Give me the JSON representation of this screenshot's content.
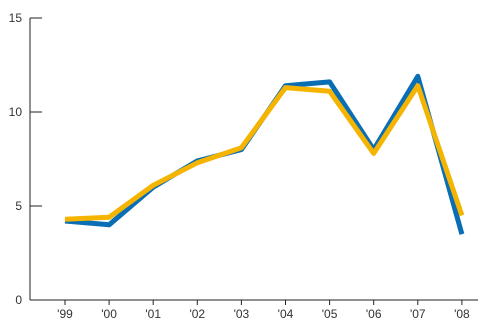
{
  "chart_data": {
    "type": "line",
    "title": "",
    "xlabel": "",
    "ylabel": "",
    "categories": [
      "'99",
      "'00",
      "'01",
      "'02",
      "'03",
      "'04",
      "'05",
      "'06",
      "'07",
      "'08"
    ],
    "ylim": [
      0,
      15
    ],
    "yticks": [
      0,
      5,
      10,
      15
    ],
    "grid": false,
    "legend": "none",
    "series": [
      {
        "color": "#0a6eb4",
        "values": [
          4.2,
          4.0,
          6.0,
          7.4,
          8.0,
          11.4,
          11.6,
          8.0,
          11.9,
          3.5
        ]
      },
      {
        "color": "#f5b400",
        "values": [
          4.3,
          4.4,
          6.1,
          7.3,
          8.1,
          11.3,
          11.1,
          7.8,
          11.4,
          4.5
        ]
      }
    ]
  }
}
